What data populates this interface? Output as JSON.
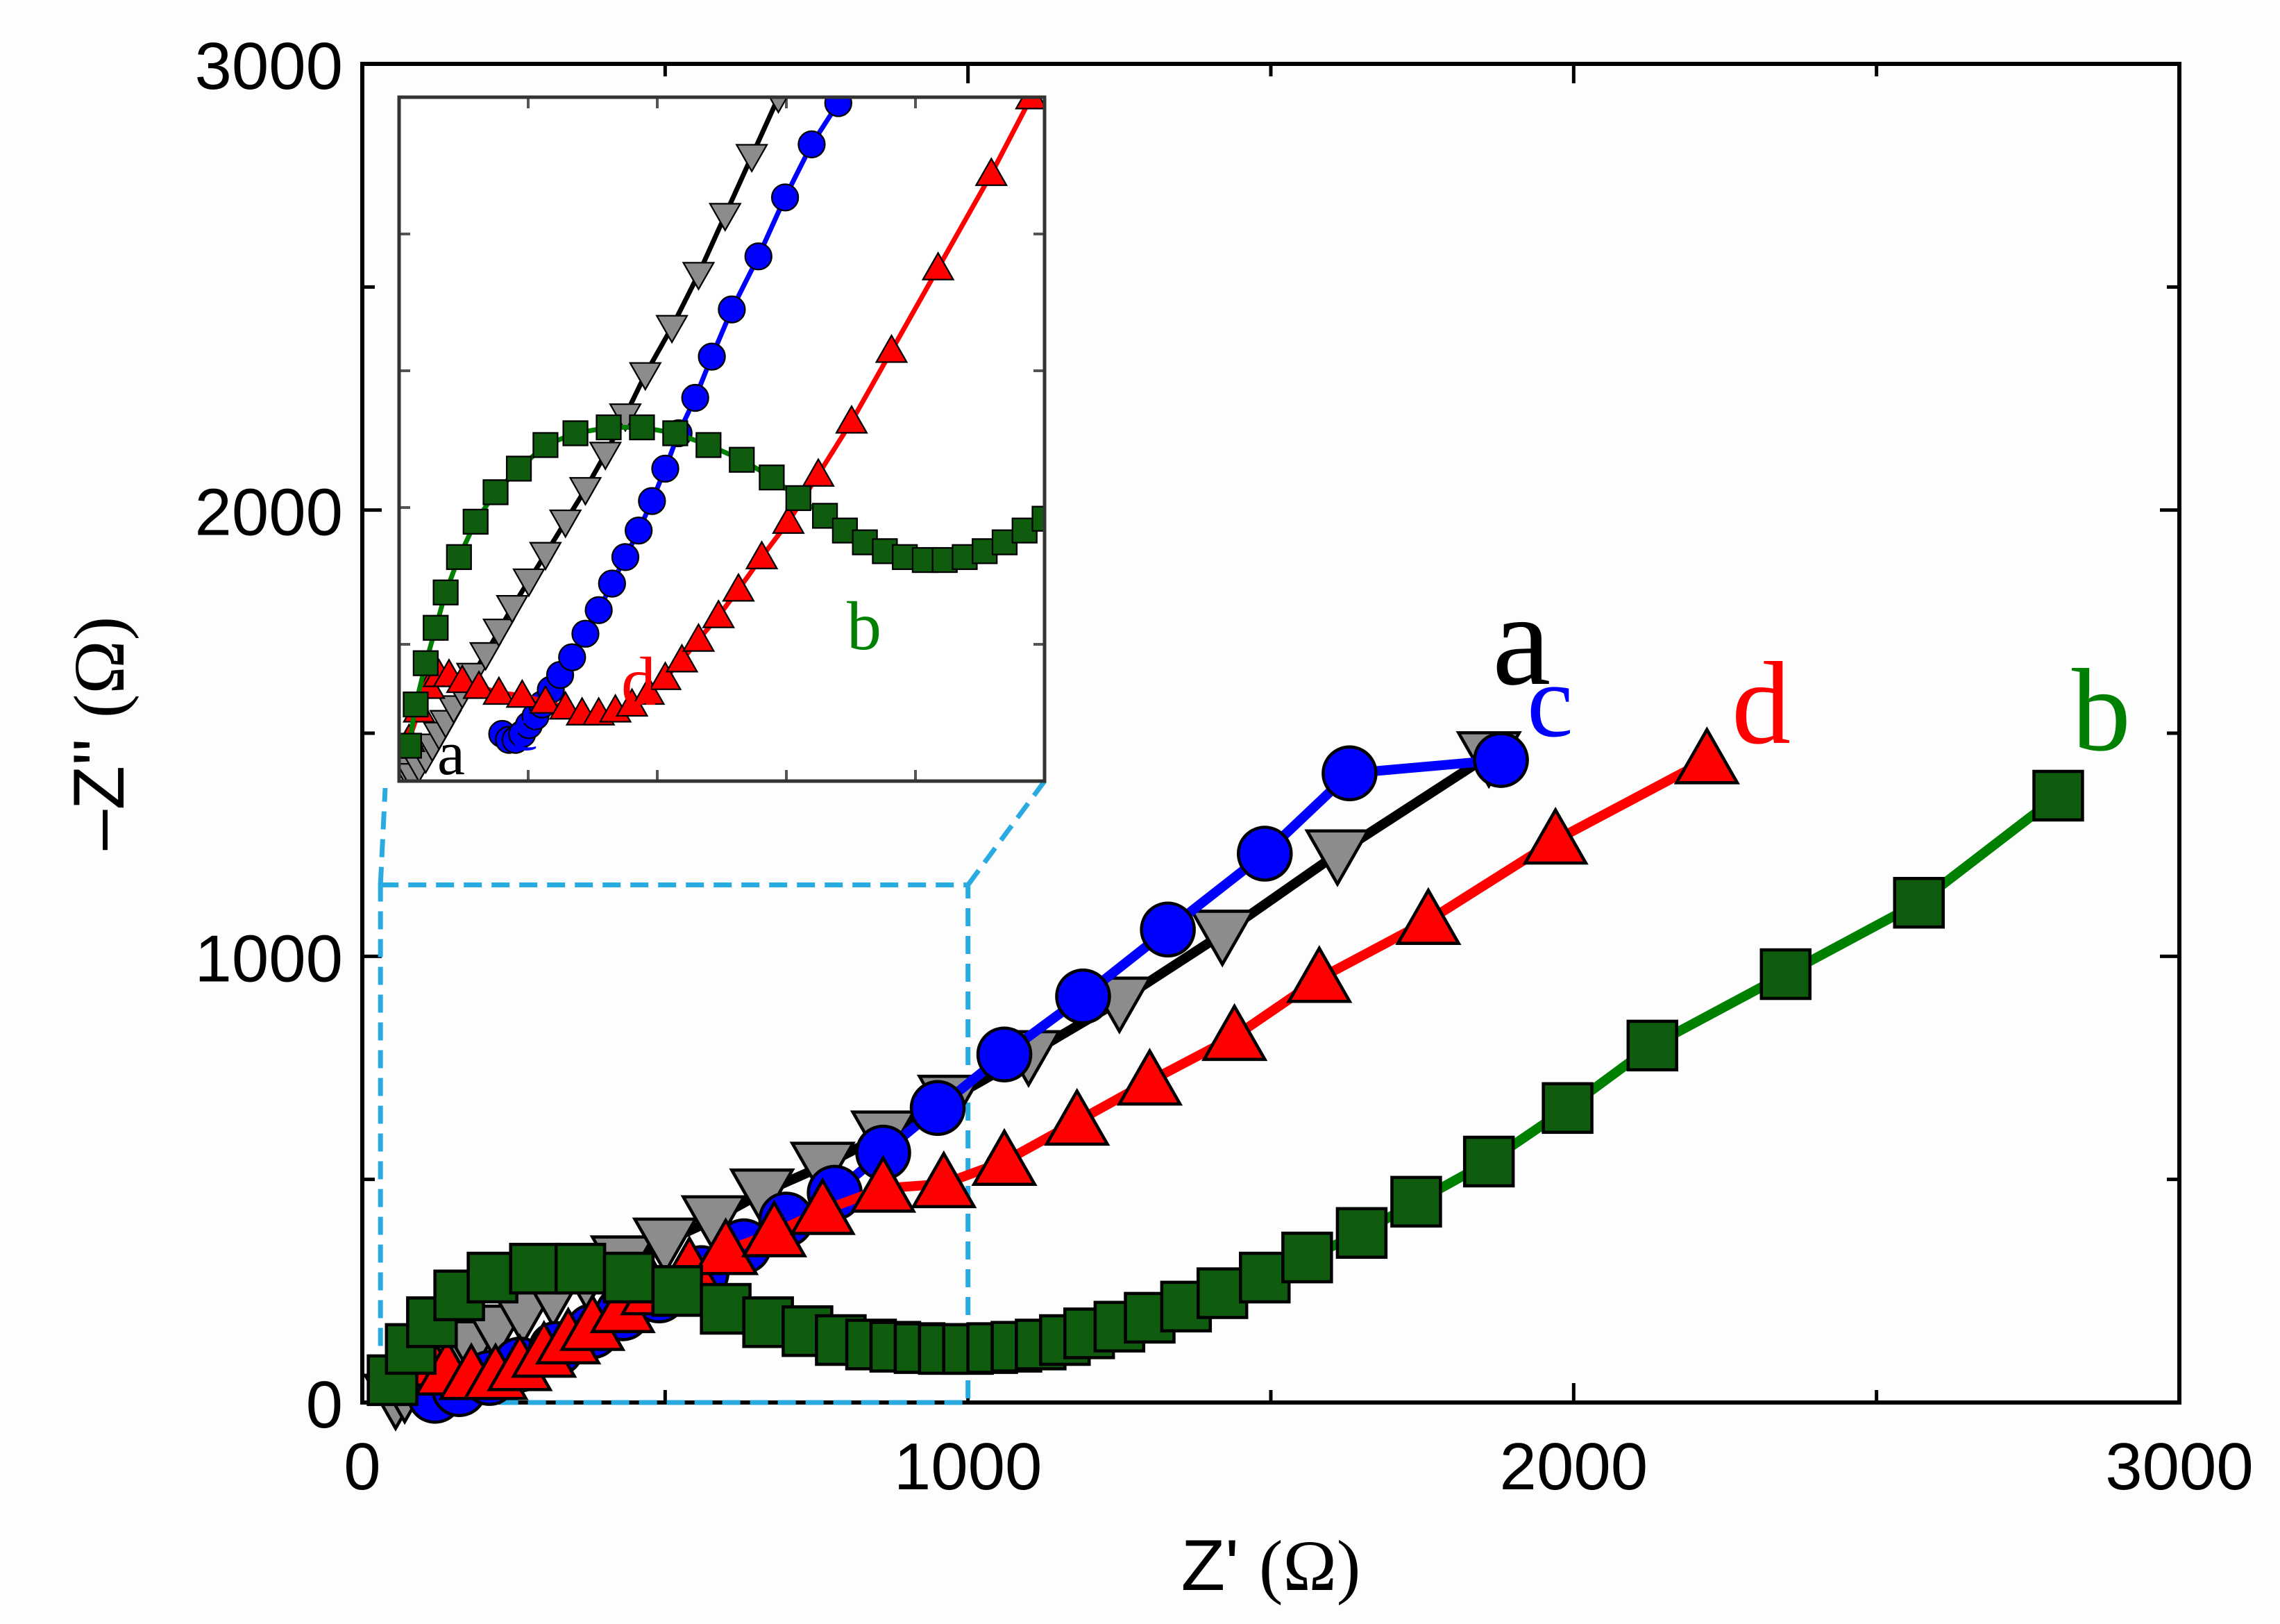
{
  "chart_data": [
    {
      "type": "scatter",
      "role": "main",
      "xlabel": "Z' (Ω)",
      "ylabel": "–Z'' (Ω)",
      "xlabel_text": "Z'",
      "ylabel_text": "–Z''",
      "unit": "(Ω)",
      "xlim": [
        0,
        3000
      ],
      "ylim": [
        0,
        3000
      ],
      "xticks": [
        0,
        1000,
        2000,
        3000
      ],
      "yticks": [
        0,
        1000,
        2000,
        3000
      ],
      "xtick_labels": [
        "0",
        "1000",
        "2000",
        "3000"
      ],
      "ytick_labels": [
        "0",
        "1000",
        "2000",
        "3000"
      ],
      "zoom_region": {
        "x": [
          30,
          1000
        ],
        "y": [
          0,
          1160
        ]
      },
      "series": [
        {
          "name": "a",
          "color": "#000000",
          "marker": "triangle-down",
          "marker_fill": "#8c8c8c",
          "x": [
            55,
            70,
            90,
            115,
            145,
            180,
            220,
            265,
            315,
            370,
            430,
            500,
            580,
            660,
            760,
            860,
            970,
            1100,
            1250,
            1420,
            1610,
            1860
          ],
          "y": [
            10,
            25,
            45,
            70,
            100,
            130,
            165,
            200,
            240,
            280,
            320,
            360,
            410,
            470,
            530,
            600,
            680,
            780,
            900,
            1050,
            1230,
            1450
          ]
        },
        {
          "name": "c",
          "color": "#0000ff",
          "marker": "circle",
          "marker_fill": "#0000ff",
          "x": [
            120,
            160,
            210,
            260,
            320,
            380,
            430,
            490,
            560,
            630,
            700,
            780,
            860,
            950,
            1060,
            1190,
            1330,
            1490,
            1630,
            1880
          ],
          "y": [
            15,
            30,
            55,
            85,
            120,
            160,
            200,
            240,
            290,
            350,
            410,
            470,
            560,
            660,
            780,
            910,
            1060,
            1230,
            1410,
            1440
          ]
        },
        {
          "name": "d",
          "color": "#ff0000",
          "marker": "triangle-up",
          "marker_fill": "#ff0000",
          "x": [
            80,
            110,
            140,
            180,
            220,
            260,
            300,
            340,
            380,
            430,
            480,
            540,
            600,
            680,
            760,
            860,
            960,
            1060,
            1180,
            1300,
            1440,
            1580,
            1760,
            1970,
            2220
          ],
          "y": [
            120,
            90,
            70,
            60,
            60,
            80,
            110,
            140,
            170,
            210,
            250,
            300,
            340,
            380,
            430,
            480,
            490,
            540,
            630,
            720,
            820,
            950,
            1080,
            1260,
            1440
          ]
        },
        {
          "name": "b",
          "color": "#008000",
          "marker": "square",
          "marker_fill": "#0f5c0f",
          "x": [
            50,
            80,
            115,
            160,
            215,
            285,
            360,
            440,
            520,
            600,
            670,
            735,
            790,
            840,
            880,
            920,
            960,
            1000,
            1040,
            1080,
            1120,
            1160,
            1200,
            1250,
            1300,
            1360,
            1420,
            1490,
            1560,
            1650,
            1740,
            1860,
            1990,
            2130,
            2350,
            2570,
            2800
          ],
          "y": [
            50,
            120,
            180,
            240,
            280,
            300,
            300,
            280,
            250,
            210,
            180,
            160,
            140,
            130,
            125,
            122,
            120,
            120,
            122,
            125,
            130,
            140,
            155,
            170,
            190,
            215,
            245,
            280,
            325,
            380,
            450,
            540,
            660,
            800,
            960,
            1120,
            1360
          ]
        }
      ],
      "annotations": [
        "a",
        "c",
        "d",
        "b"
      ]
    },
    {
      "type": "scatter",
      "role": "inset",
      "xlim": [
        30,
        1000
      ],
      "ylim": [
        0,
        1160
      ],
      "series": [
        {
          "name": "a",
          "color": "#000000",
          "marker": "triangle-down",
          "marker_fill": "#8c8c8c",
          "x": [
            40,
            50,
            60,
            70,
            80,
            90,
            100,
            112,
            125,
            140,
            160,
            180,
            200,
            225,
            250,
            280,
            310,
            340,
            370,
            400,
            440,
            480,
            520,
            560,
            600
          ],
          "y": [
            20,
            10,
            25,
            40,
            60,
            80,
            100,
            125,
            150,
            180,
            215,
            255,
            295,
            340,
            385,
            440,
            495,
            555,
            620,
            690,
            770,
            860,
            960,
            1060,
            1160
          ]
        },
        {
          "name": "c",
          "color": "#0000ff",
          "marker": "circle",
          "marker_fill": "#0000ff",
          "x": [
            185,
            195,
            205,
            215,
            225,
            235,
            245,
            258,
            272,
            290,
            310,
            330,
            350,
            370,
            390,
            410,
            430,
            450,
            475,
            500,
            530,
            570,
            610,
            650,
            690
          ],
          "y": [
            80,
            70,
            70,
            80,
            95,
            110,
            130,
            155,
            180,
            210,
            250,
            290,
            335,
            380,
            425,
            475,
            530,
            590,
            650,
            720,
            800,
            890,
            990,
            1080,
            1150
          ]
        },
        {
          "name": "d",
          "color": "#ff0000",
          "marker": "triangle-up",
          "marker_fill": "#ff0000",
          "x": [
            45,
            60,
            75,
            90,
            105,
            125,
            150,
            180,
            215,
            250,
            280,
            305,
            330,
            355,
            380,
            405,
            430,
            455,
            480,
            510,
            540,
            575,
            615,
            660,
            710,
            770,
            840,
            920,
            980
          ],
          "y": [
            70,
            120,
            160,
            180,
            180,
            170,
            160,
            150,
            145,
            135,
            125,
            115,
            115,
            120,
            130,
            150,
            175,
            205,
            240,
            280,
            325,
            380,
            440,
            520,
            610,
            730,
            870,
            1030,
            1160
          ]
        },
        {
          "name": "b",
          "color": "#008000",
          "marker": "square",
          "marker_fill": "#0f5c0f",
          "x": [
            45,
            55,
            70,
            85,
            100,
            120,
            145,
            175,
            210,
            250,
            295,
            345,
            395,
            445,
            495,
            545,
            590,
            630,
            670,
            700,
            730,
            760,
            790,
            820,
            850,
            880,
            910,
            940,
            970,
            1000
          ],
          "y": [
            60,
            130,
            200,
            260,
            320,
            380,
            440,
            490,
            530,
            570,
            590,
            600,
            600,
            590,
            570,
            545,
            515,
            480,
            450,
            425,
            405,
            390,
            380,
            375,
            375,
            380,
            390,
            405,
            425,
            445
          ]
        }
      ],
      "annotations": [
        "a",
        "c",
        "d",
        "b"
      ]
    }
  ]
}
